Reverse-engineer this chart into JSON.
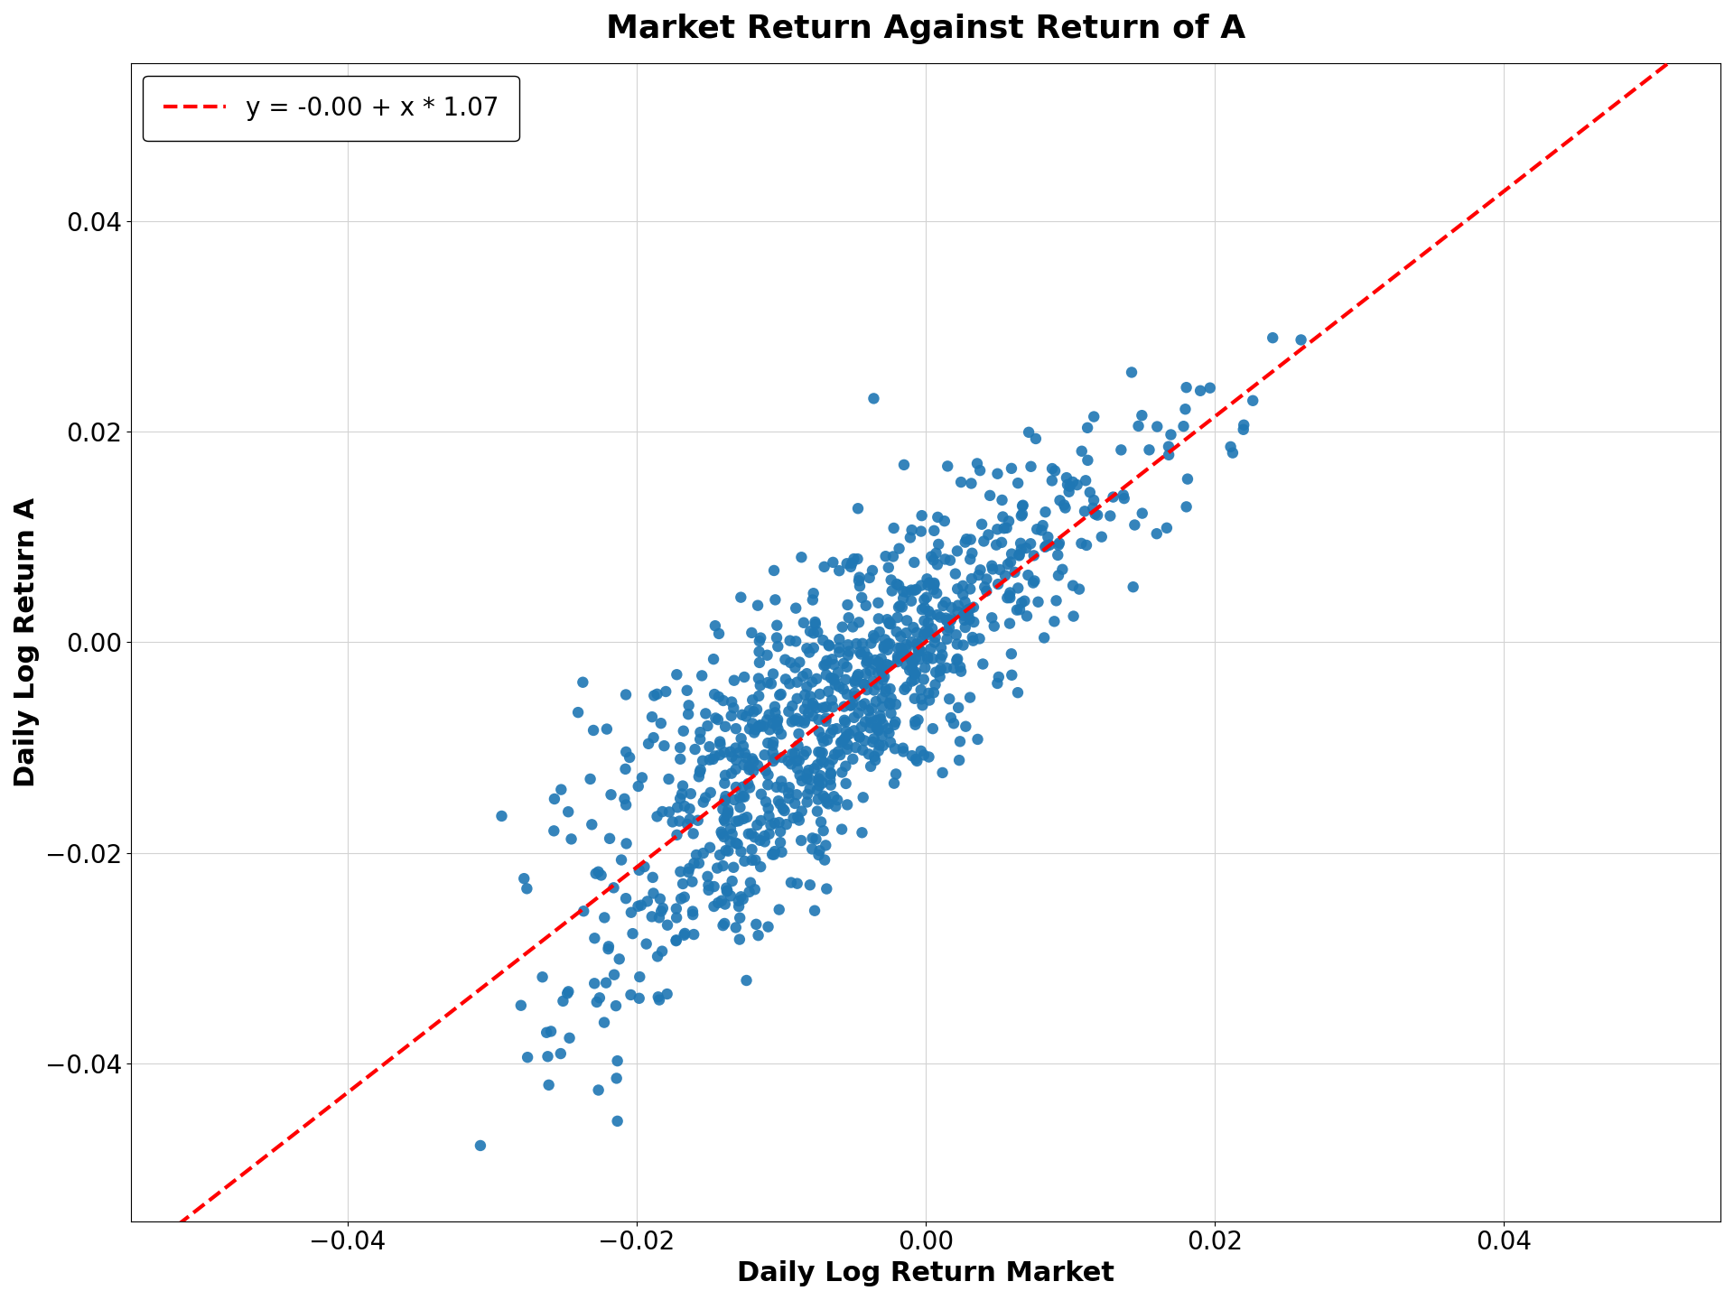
{
  "title": "Market Return Against Return of A",
  "xlabel": "Daily Log Return Market",
  "ylabel": "Daily Log Return A",
  "legend_label": "y = -0.00 + x * 1.07",
  "intercept": 0.0,
  "slope": 1.07,
  "scatter_color": "#1f77b4",
  "line_color": "#ff0000",
  "line_style": "--",
  "xlim": [
    -0.055,
    0.055
  ],
  "ylim": [
    -0.055,
    0.055
  ],
  "xticks": [
    -0.04,
    -0.02,
    0.0,
    0.02,
    0.04
  ],
  "yticks": [
    -0.04,
    -0.02,
    0.0,
    0.02,
    0.04
  ],
  "marker_size": 80,
  "seed": 42,
  "n_points": 1000,
  "title_fontsize": 26,
  "label_fontsize": 22,
  "tick_fontsize": 20,
  "legend_fontsize": 20,
  "market_std": 0.01,
  "noise_std": 0.007,
  "market_skew": -0.5
}
